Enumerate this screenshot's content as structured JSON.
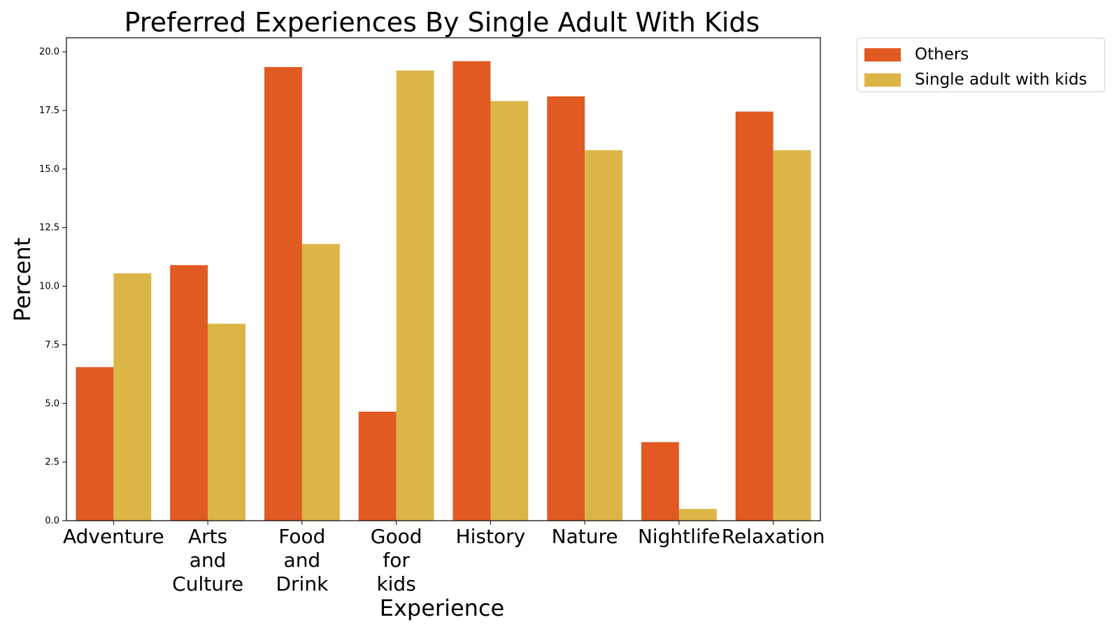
{
  "chart_data": {
    "type": "bar",
    "title": "Preferred Experiences By Single Adult With Kids",
    "xlabel": "Experience",
    "ylabel": "Percent",
    "categories": [
      [
        "Adventure"
      ],
      [
        "Arts",
        "and",
        "Culture"
      ],
      [
        "Food",
        "and",
        "Drink"
      ],
      [
        "Good",
        "for",
        "kids"
      ],
      [
        "History"
      ],
      [
        "Nature"
      ],
      [
        "Nightlife"
      ],
      [
        "Relaxation"
      ]
    ],
    "series": [
      {
        "name": "Others",
        "color": "#e05a22",
        "values": [
          6.55,
          10.9,
          19.35,
          4.65,
          19.6,
          18.1,
          3.35,
          17.45
        ]
      },
      {
        "name": "Single adult with kids",
        "color": "#dbb545",
        "values": [
          10.55,
          8.4,
          11.8,
          19.2,
          17.9,
          15.8,
          0.5,
          15.8
        ]
      }
    ],
    "ylim": [
      0,
      20.6
    ],
    "yticks": [
      "0.0",
      "2.5",
      "5.0",
      "7.5",
      "10.0",
      "12.5",
      "15.0",
      "17.5",
      "20.0"
    ],
    "grid": false,
    "legend_position": "outside-top-right"
  }
}
